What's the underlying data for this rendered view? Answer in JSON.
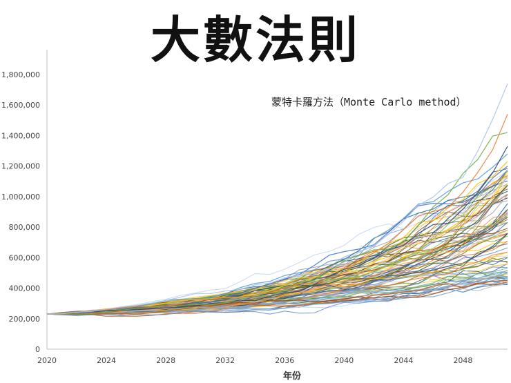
{
  "chart_data": {
    "type": "line",
    "title": "大數法則",
    "subtitle": "蒙特卡羅方法（Monte Carlo method）",
    "xlabel": "年份",
    "ylabel": "",
    "x_start": 2020,
    "x_end": 2051,
    "xlim": [
      2020,
      2051
    ],
    "ylim": [
      0,
      1900000
    ],
    "x_ticks": [
      "2020",
      "2024",
      "2028",
      "2032",
      "2036",
      "2040",
      "2044",
      "2048"
    ],
    "y_ticks": [
      "0",
      "200,000",
      "400,000",
      "600,000",
      "800,000",
      "1,000,000",
      "1,200,000",
      "1,400,000",
      "1,600,000",
      "1,800,000"
    ],
    "grid": false,
    "legend": "none",
    "start_value": 230000,
    "series_count": 100,
    "highlight_series": [
      {
        "final_value": 1740000,
        "color": "#a9c4e8"
      },
      {
        "final_value": 1540000,
        "color": "#ed7d31"
      },
      {
        "final_value": 1420000,
        "color": "#70ad47"
      },
      {
        "final_value": 1330000,
        "color": "#264478"
      },
      {
        "final_value": 1280000,
        "color": "#5b9bd5"
      },
      {
        "final_value": 1230000,
        "color": "#ffc000"
      },
      {
        "final_value": 1200000,
        "color": "#4472c4"
      },
      {
        "final_value": 440000,
        "color": "#c55a11"
      },
      {
        "final_value": 450000,
        "color": "#9e480e"
      },
      {
        "final_value": 500000,
        "color": "#a5a5a5"
      }
    ],
    "palette": [
      "#5b9bd5",
      "#ed7d31",
      "#a5a5a5",
      "#ffc000",
      "#4472c4",
      "#70ad47",
      "#264478",
      "#9e480e",
      "#636363",
      "#997300",
      "#255e91",
      "#43682b",
      "#698ed0",
      "#f1975a",
      "#b7b7b7",
      "#ffcd33",
      "#8cc168",
      "#7cafdd",
      "#c4d6ef",
      "#f8cbad"
    ]
  }
}
